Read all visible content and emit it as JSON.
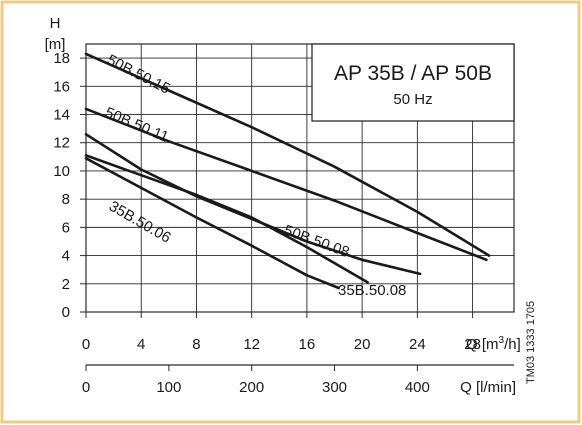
{
  "chart_data": {
    "type": "line",
    "title": "AP 35B / AP 50B",
    "subtitle": "50 Hz",
    "drawing_code": "TM03 1333 1705",
    "y_axis": {
      "name": "H",
      "unit": "[m]",
      "range": [
        0,
        19
      ],
      "ticks": [
        "0",
        "2",
        "4",
        "6",
        "8",
        "10",
        "12",
        "14",
        "16",
        "18"
      ]
    },
    "x_axis_primary": {
      "label": "Q [m³/h]",
      "range": [
        0,
        31
      ],
      "ticks": [
        "0",
        "4",
        "8",
        "12",
        "16",
        "20",
        "24",
        "28"
      ]
    },
    "x_axis_secondary": {
      "label": "Q [l/min]",
      "ticks": [
        "0",
        "100",
        "200",
        "300",
        "400"
      ],
      "tick_values_m3h": [
        0,
        6,
        12,
        18,
        24
      ]
    },
    "grid": true,
    "series": [
      {
        "name": "50B.50.15",
        "points": [
          [
            0,
            18.3
          ],
          [
            6,
            15.7
          ],
          [
            12,
            13.1
          ],
          [
            18,
            10.3
          ],
          [
            24,
            7.1
          ],
          [
            29.2,
            4.0
          ]
        ]
      },
      {
        "name": "50B.50.11",
        "points": [
          [
            0,
            14.4
          ],
          [
            6,
            12.1
          ],
          [
            12,
            10.0
          ],
          [
            18,
            7.9
          ],
          [
            24,
            5.6
          ],
          [
            29,
            3.7
          ]
        ]
      },
      {
        "name": "50B.50.08",
        "points": [
          [
            0,
            12.6
          ],
          [
            4,
            10.1
          ],
          [
            8,
            8.2
          ],
          [
            12,
            6.6
          ],
          [
            16,
            5.0
          ],
          [
            20,
            3.7
          ],
          [
            24.2,
            2.7
          ]
        ]
      },
      {
        "name": "35B.50.08",
        "points": [
          [
            0,
            11.1
          ],
          [
            4,
            9.7
          ],
          [
            8,
            8.3
          ],
          [
            12,
            6.7
          ],
          [
            16,
            4.6
          ],
          [
            20.4,
            2.1
          ]
        ]
      },
      {
        "name": "35B.50.06",
        "points": [
          [
            0,
            10.9
          ],
          [
            4,
            8.8
          ],
          [
            8,
            6.7
          ],
          [
            12,
            4.7
          ],
          [
            16,
            2.6
          ],
          [
            18.3,
            1.7
          ]
        ]
      }
    ],
    "series_labels": [
      "50B.50.15",
      "50B.50.11",
      "50B.50.08",
      "35B.50.08",
      "35B.50.06"
    ]
  },
  "colors": {
    "frame": "#f2cc80",
    "curve": "#1a1a1a",
    "grid": "#2a2a2a",
    "text": "#1a1a1a",
    "background": "#ffffff"
  }
}
